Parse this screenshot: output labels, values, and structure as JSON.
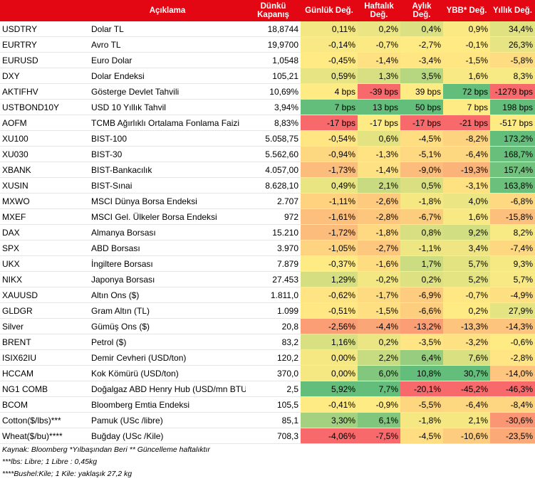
{
  "table": {
    "header": [
      "Açıklama",
      "Dünkü\nKapanış",
      "Günlük Değ.",
      "Haftalık\nDeğ.",
      "Aylık\nDeğ.",
      "YBB* Değ.",
      "Yıllık Değ."
    ],
    "rows": [
      [
        "USDTRY",
        "Dolar TL",
        "18,8744",
        "0,11%",
        "0,2%",
        "0,4%",
        "0,9%",
        "34,4%"
      ],
      [
        "EURTRY",
        "Avro TL",
        "19,9700",
        "-0,14%",
        "-0,7%",
        "-2,7%",
        "-0,1%",
        "26,3%"
      ],
      [
        "EURUSD",
        "Euro Dolar",
        "1,0548",
        "-0,45%",
        "-1,4%",
        "-3,4%",
        "-1,5%",
        "-5,8%"
      ],
      [
        "DXY",
        "Dolar Endeksi",
        "105,21",
        "0,59%",
        "1,3%",
        "3,5%",
        "1,6%",
        "8,3%"
      ],
      [
        "AKTIFHV",
        "Gösterge Devlet Tahvili",
        "10,69%",
        "4 bps",
        "-39 bps",
        "39 bps",
        "72 bps",
        "-1279 bps"
      ],
      [
        "USTBOND10Y",
        "USD 10 Yıllık Tahvil",
        "3,94%",
        "7 bps",
        "13 bps",
        "50 bps",
        "7 bps",
        "198 bps"
      ],
      [
        "AOFM",
        "TCMB Ağırlıklı Ortalama Fonlama Faizi",
        "8,83%",
        "-17 bps",
        "-17 bps",
        "-17 bps",
        "-21 bps",
        "-517 bps"
      ],
      [
        "XU100",
        "BIST-100",
        "5.058,75",
        "-0,54%",
        "0,6%",
        "-4,5%",
        "-8,2%",
        "173,2%"
      ],
      [
        "XU030",
        "BIST-30",
        "5.562,60",
        "-0,94%",
        "-1,3%",
        "-5,1%",
        "-6,4%",
        "168,7%"
      ],
      [
        "XBANK",
        "BIST-Bankacılık",
        "4.057,00",
        "-1,73%",
        "-1,4%",
        "-9,0%",
        "-19,3%",
        "157,4%"
      ],
      [
        "XUSIN",
        "BIST-Sınai",
        "8.628,10",
        "0,49%",
        "2,1%",
        "0,5%",
        "-3,1%",
        "163,8%"
      ],
      [
        "MXWO",
        "MSCI Dünya Borsa Endeksi",
        "2.707",
        "-1,11%",
        "-2,6%",
        "-1,8%",
        "4,0%",
        "-6,8%"
      ],
      [
        "MXEF",
        "MSCI Gel. Ülkeler Borsa Endeksi",
        "972",
        "-1,61%",
        "-2,8%",
        "-6,7%",
        "1,6%",
        "-15,8%"
      ],
      [
        "DAX",
        "Almanya Borsası",
        "15.210",
        "-1,72%",
        "-1,8%",
        "0,8%",
        "9,2%",
        "8,2%"
      ],
      [
        "SPX",
        "ABD Borsası",
        "3.970",
        "-1,05%",
        "-2,7%",
        "-1,1%",
        "3,4%",
        "-7,4%"
      ],
      [
        "UKX",
        "İngiltere Borsası",
        "7.879",
        "-0,37%",
        "-1,6%",
        "1,7%",
        "5,7%",
        "9,3%"
      ],
      [
        "NIKX",
        "Japonya Borsası",
        "27.453",
        "1,29%",
        "-0,2%",
        "0,2%",
        "5,2%",
        "5,7%"
      ],
      [
        "XAUUSD",
        "Altın Ons ($)",
        "1.811,0",
        "-0,62%",
        "-1,7%",
        "-6,9%",
        "-0,7%",
        "-4,9%"
      ],
      [
        "GLDGR",
        "Gram Altın (TL)",
        "1.099",
        "-0,51%",
        "-1,5%",
        "-6,6%",
        "0,2%",
        "27,9%"
      ],
      [
        "Silver",
        "Gümüş Ons ($)",
        "20,8",
        "-2,56%",
        "-4,4%",
        "-13,2%",
        "-13,3%",
        "-14,3%"
      ],
      [
        "BRENT",
        "Petrol ($)",
        "83,2",
        "1,16%",
        "0,2%",
        "-3,5%",
        "-3,2%",
        "-0,6%"
      ],
      [
        "ISIX62IU",
        "Demir Cevheri (USD/ton)",
        "120,2",
        "0,00%",
        "2,2%",
        "6,4%",
        "7,6%",
        "-2,8%"
      ],
      [
        "HCCAM",
        "Kok Kömürü (USD/ton)",
        "370,0",
        "0,00%",
        "6,0%",
        "10,8%",
        "30,7%",
        "-14,0%"
      ],
      [
        "NG1 COMB",
        "Doğalgaz ABD Henry Hub (USD/mn BTU)",
        "2,5",
        "5,92%",
        "7,7%",
        "-20,1%",
        "-45,2%",
        "-46,3%"
      ],
      [
        "BCOM",
        "Bloomberg Emtia Endeksi",
        "105,5",
        "-0,41%",
        "-0,9%",
        "-5,5%",
        "-6,4%",
        "-8,4%"
      ],
      [
        "Cotton($/lbs)***",
        "Pamuk (USc /libre)",
        "85,1",
        "3,30%",
        "6,1%",
        "-1,8%",
        "2,1%",
        "-30,6%"
      ],
      [
        "Wheat($/bu)****",
        "Buğday (USc /Kile)",
        "708,3",
        "-4,06%",
        "-7,5%",
        "-4,5%",
        "-10,6%",
        "-23,5%"
      ]
    ]
  },
  "footnotes": [
    "Kaynak: Bloomberg *Yılbaşından Beri  ** Güncelleme haftalıktır",
    "***lbs: Libre; 1 Libre : 0,45kg",
    "****Bushel:Kile; 1 Kile: yaklaşık 27,2 kg"
  ]
}
